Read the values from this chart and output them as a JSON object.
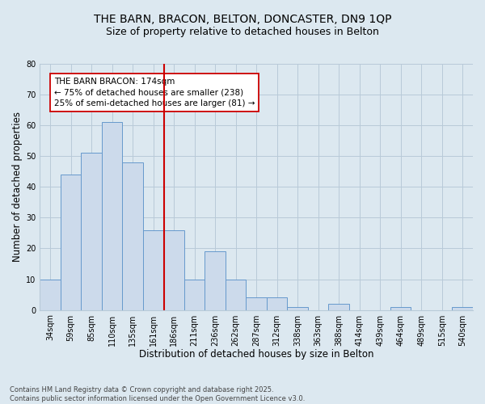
{
  "title1": "THE BARN, BRACON, BELTON, DONCASTER, DN9 1QP",
  "title2": "Size of property relative to detached houses in Belton",
  "xlabel": "Distribution of detached houses by size in Belton",
  "ylabel": "Number of detached properties",
  "categories": [
    "34sqm",
    "59sqm",
    "85sqm",
    "110sqm",
    "135sqm",
    "161sqm",
    "186sqm",
    "211sqm",
    "236sqm",
    "262sqm",
    "287sqm",
    "312sqm",
    "338sqm",
    "363sqm",
    "388sqm",
    "414sqm",
    "439sqm",
    "464sqm",
    "489sqm",
    "515sqm",
    "540sqm"
  ],
  "values": [
    10,
    44,
    51,
    61,
    48,
    26,
    26,
    10,
    19,
    10,
    4,
    4,
    1,
    0,
    2,
    0,
    0,
    1,
    0,
    0,
    1
  ],
  "bar_color": "#ccdaeb",
  "bar_edge_color": "#6699cc",
  "vline_color": "#cc0000",
  "annotation_line1": "THE BARN BRACON: 174sqm",
  "annotation_line2": "← 75% of detached houses are smaller (238)",
  "annotation_line3": "25% of semi-detached houses are larger (81) →",
  "annotation_box_color": "#ffffff",
  "annotation_box_edge": "#cc0000",
  "ylim": [
    0,
    80
  ],
  "yticks": [
    0,
    10,
    20,
    30,
    40,
    50,
    60,
    70,
    80
  ],
  "grid_color": "#b8cad8",
  "background_color": "#dce8f0",
  "footer": "Contains HM Land Registry data © Crown copyright and database right 2025.\nContains public sector information licensed under the Open Government Licence v3.0.",
  "title_fontsize": 10,
  "subtitle_fontsize": 9,
  "tick_fontsize": 7,
  "label_fontsize": 8.5,
  "annot_fontsize": 7.5,
  "footer_fontsize": 6
}
